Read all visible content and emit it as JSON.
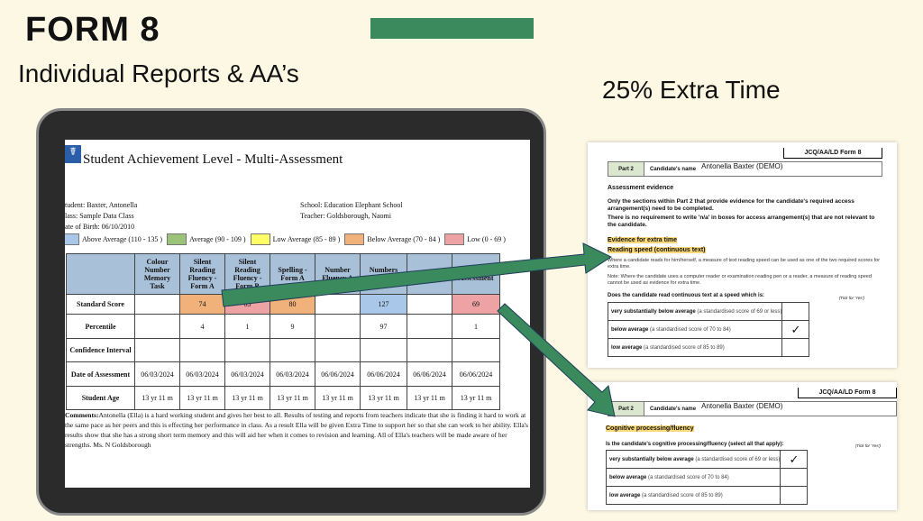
{
  "slide": {
    "title": "FORM 8",
    "subtitle": "Individual Reports & AA’s",
    "right_title": "25% Extra Time",
    "accent": "#3a8a5e",
    "background": "#fdf8e3"
  },
  "report": {
    "title": "Student Achievement Level - Multi-Assessment",
    "student": "tudent: Baxter, Antonella",
    "class": "lass: Sample Data Class",
    "dob": "ate of Birth: 06/10/2010",
    "school": "School: Education Elephant School",
    "teacher": "Teacher: Goldsborough, Naomi",
    "legend": [
      {
        "label": "Above Average (110 - 135 )",
        "color": "#a9c7e8"
      },
      {
        "label": "Average (90 - 109 )",
        "color": "#9bc47a"
      },
      {
        "label": "Low Average (85 - 89 )",
        "color": "#ffff66"
      },
      {
        "label": "Below Average (70 - 84 )",
        "color": "#f0b27a"
      },
      {
        "label": "Low (0 - 69 )",
        "color": "#eda3a3"
      }
    ],
    "columns": [
      "Colour Number Memory Task",
      "Silent Reading Fluency - Form A",
      "Silent Reading Fluency - Form B",
      "Spelling - Form A",
      "Number Fluency A",
      "Numbers Backwards",
      "Number ...",
      "Processing ... Assessment"
    ],
    "rows": [
      {
        "label": "Standard Score",
        "cells": [
          "",
          "74",
          "65",
          "80",
          "",
          "127",
          "",
          "69"
        ],
        "colors": [
          "",
          "#f0b27a",
          "#eda3a3",
          "#f0b27a",
          "",
          "#a9c7e8",
          "",
          "#eda3a3"
        ]
      },
      {
        "label": "Percentile",
        "cells": [
          "",
          "4",
          "1",
          "9",
          "",
          "97",
          "",
          "1"
        ]
      },
      {
        "label": "Confidence Interval",
        "cells": [
          "",
          "",
          "",
          "",
          "",
          "",
          "",
          ""
        ]
      },
      {
        "label": "Date of Assessment",
        "cells": [
          "06/03/2024",
          "06/03/2024",
          "06/03/2024",
          "06/03/2024",
          "06/06/2024",
          "06/06/2024",
          "06/06/2024",
          "06/06/2024"
        ]
      },
      {
        "label": "Student Age",
        "cells": [
          "13 yr 11 m",
          "13 yr 11 m",
          "13 yr 11 m",
          "13 yr 11 m",
          "13 yr 11 m",
          "13 yr 11 m",
          "13 yr 11 m",
          "13 yr 11 m"
        ]
      }
    ],
    "comments_label": "Comments:",
    "comments": "Antonella (Ella) is a hard working student and gives her best to all. Results of testing and reports from teachers indicate that she is finding it hard to work at the same pace as her peers and this is effecting her performance in class. As a result Ella will be given Extra Time to support her so that she can work to her ability. Ella's results show that she has a strong short term memory and this will aid her when it comes to revision and learning. All of Ella's teachers will be made aware of her strengths. Ms. N Goldsborough"
  },
  "form1": {
    "header": "JCQ/AA/LD Form 8",
    "part": "Part 2",
    "cand_label": "Candidate's name",
    "cand_name": "Antonella Baxter (DEMO)",
    "section": "Assessment evidence",
    "p1": "Only the sections within Part 2 that provide evidence for the candidate's required access arrangement(s) need to be completed.",
    "p2": "There is no requirement to write 'n/a' in boxes for access arrangement(s) that are not relevant to the candidate.",
    "h1": "Evidence for extra time",
    "h2": "Reading speed (continuous text)",
    "p3": "Where a candidate reads for him/herself, a measure of text reading speed can be used as one of the two required scores for extra time.",
    "p4": "Note: Where the candidate uses a computer reader or examination reading pen or a reader, a measure of reading speed cannot be used as evidence for extra time.",
    "q": "Does the candidate read continuous text at a speed which is:",
    "tick": "(Tick for 'Yes')",
    "opts": [
      {
        "b": "very substantially below average",
        "t": " (a standardised score of 69 or less)",
        "c": ""
      },
      {
        "b": "below average",
        "t": " (a standardised score of 70 to 84)",
        "c": "✓"
      },
      {
        "b": "low average",
        "t": " (a standardised score of 85 to 89)",
        "c": ""
      }
    ]
  },
  "form2": {
    "header": "JCQ/AA/LD Form 8",
    "part": "Part 2",
    "cand_label": "Candidate's name",
    "cand_name": "Antonella Baxter (DEMO)",
    "h1": "Cognitive processing/fluency",
    "q": "Is the candidate's cognitive processing/fluency (select all that apply):",
    "tick": "(Tick for 'Yes')",
    "opts": [
      {
        "b": "very substantially below average",
        "t": " (a standardised score of 69 or less)",
        "c": "✓"
      },
      {
        "b": "below average",
        "t": " (a standardised score of 70 to 84)",
        "c": ""
      },
      {
        "b": "low average",
        "t": " (a standardised score of 85 to 89)",
        "c": ""
      }
    ]
  }
}
